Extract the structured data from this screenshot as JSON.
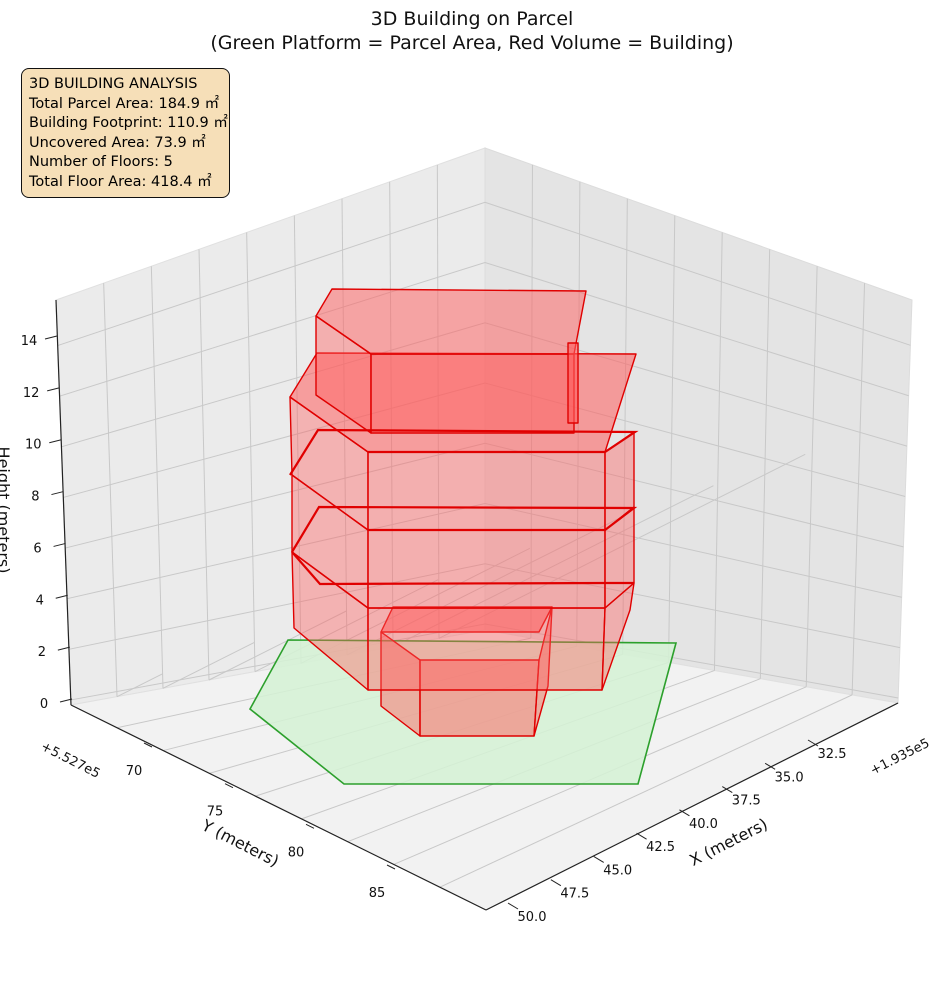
{
  "chart_data": {
    "type": "3d-polygons",
    "title": "3D Building on Parcel",
    "subtitle": "(Green Platform = Parcel Area, Red Volume = Building)",
    "xlabel": "X (meters)",
    "ylabel": "Y (meters)",
    "zlabel": "Height (meters)",
    "x_offset": "+1.935e5",
    "y_offset": "+5.527e5",
    "x_ticks": [
      "32.5",
      "35.0",
      "37.5",
      "40.0",
      "42.5",
      "45.0",
      "47.5",
      "50.0"
    ],
    "y_ticks": [
      "70",
      "75",
      "80",
      "85"
    ],
    "z_ticks": [
      "0",
      "2",
      "4",
      "6",
      "8",
      "10",
      "12",
      "14"
    ],
    "colors": {
      "parcel": "#2ca02c",
      "parcel_fill": "#d5f2d5",
      "building": "#e00000",
      "building_fill": "#ff5c5c"
    },
    "parcel_label": "Parcel Area",
    "building_label": "Building",
    "floors": 5
  },
  "analysis": {
    "heading": "3D BUILDING ANALYSIS",
    "lines": [
      "Total Parcel Area: 184.9 ㎡",
      "Building Footprint: 110.9 ㎡",
      "Uncovered Area: 73.9 ㎡",
      "Number of Floors: 5",
      "Total Floor Area: 418.4 ㎡"
    ]
  }
}
